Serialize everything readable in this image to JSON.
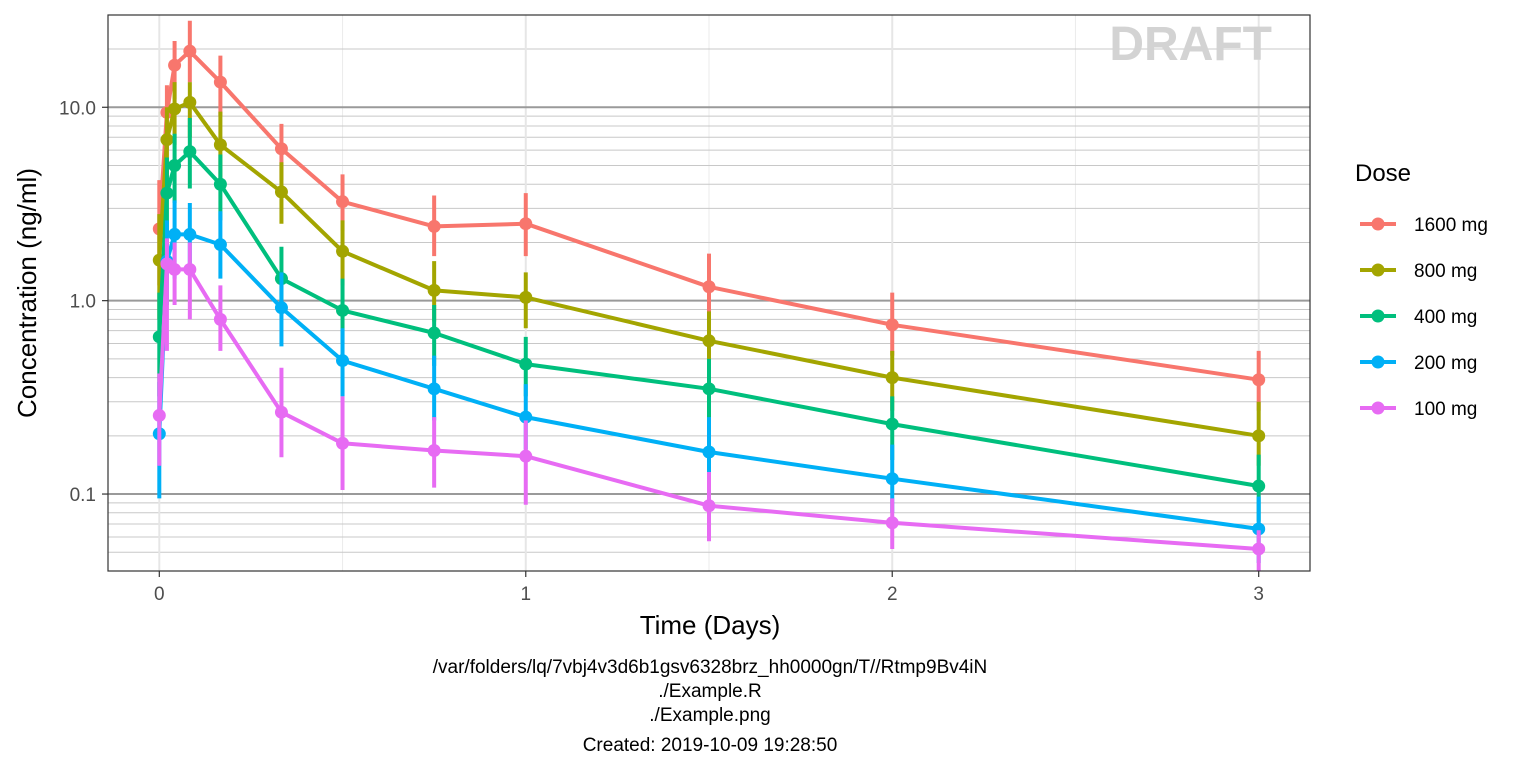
{
  "chart_data": {
    "type": "line",
    "watermark": "DRAFT",
    "xlabel": "Time (Days)",
    "ylabel": "Concentration (ng/ml)",
    "y_scale": "log10",
    "xlim": [
      -0.14,
      3.14
    ],
    "ylim": [
      0.04,
      30
    ],
    "x_ticks": [
      0,
      1,
      2,
      3
    ],
    "x_tick_labels": [
      "0",
      "1",
      "2",
      "3"
    ],
    "y_ticks": [
      0.1,
      1.0,
      10.0
    ],
    "y_tick_labels": [
      "0.1",
      "1.0",
      "10.0"
    ],
    "grid": true,
    "legend": {
      "title": "Dose",
      "position": "right"
    },
    "caption_lines": [
      "/var/folders/lq/7vbj4v3d6b1gsv6328brz_hh0000gn/T//Rtmp9Bv4iN",
      "./Example.R",
      "./Example.png",
      "Created: 2019-10-09 19:28:50"
    ],
    "x": [
      0,
      0.0208,
      0.0417,
      0.0833,
      0.1667,
      0.3333,
      0.5,
      0.75,
      1,
      1.5,
      2,
      3
    ],
    "series": [
      {
        "name": "1600 mg",
        "color": "#F8766D",
        "values": [
          2.35,
          9.4,
          16.5,
          19.5,
          13.5,
          6.1,
          3.25,
          2.42,
          2.5,
          1.18,
          0.75,
          0.39
        ],
        "err_low": [
          1.2,
          6.0,
          11.0,
          13.5,
          9.0,
          4.2,
          2.3,
          1.7,
          1.7,
          0.8,
          0.52,
          0.27
        ],
        "err_high": [
          4.2,
          13.0,
          22.0,
          28.0,
          18.5,
          8.2,
          4.5,
          3.5,
          3.6,
          1.75,
          1.1,
          0.55
        ]
      },
      {
        "name": "800 mg",
        "color": "#A3A500",
        "values": [
          1.62,
          6.8,
          9.8,
          10.6,
          6.4,
          3.65,
          1.8,
          1.13,
          1.04,
          0.62,
          0.4,
          0.2
        ],
        "err_low": [
          0.8,
          4.2,
          6.4,
          7.0,
          4.3,
          2.5,
          1.2,
          0.78,
          0.72,
          0.42,
          0.27,
          0.14
        ],
        "err_high": [
          2.8,
          10.0,
          13.5,
          13.5,
          9.5,
          5.2,
          2.6,
          1.6,
          1.4,
          0.88,
          0.55,
          0.3
        ]
      },
      {
        "name": "400 mg",
        "color": "#00BF7D",
        "values": [
          0.65,
          3.6,
          5.0,
          5.9,
          4.0,
          1.3,
          0.89,
          0.68,
          0.47,
          0.35,
          0.23,
          0.11
        ],
        "err_low": [
          0.32,
          2.2,
          3.2,
          3.8,
          2.6,
          0.85,
          0.6,
          0.46,
          0.32,
          0.24,
          0.15,
          0.072
        ],
        "err_high": [
          1.1,
          5.5,
          7.3,
          8.8,
          5.7,
          1.9,
          1.3,
          0.95,
          0.65,
          0.5,
          0.32,
          0.16
        ]
      },
      {
        "name": "200 mg",
        "color": "#00B0F6",
        "values": [
          0.205,
          1.6,
          2.2,
          2.2,
          1.95,
          0.92,
          0.49,
          0.35,
          0.25,
          0.165,
          0.12,
          0.066
        ],
        "err_low": [
          0.095,
          0.95,
          1.3,
          1.4,
          1.3,
          0.58,
          0.32,
          0.24,
          0.17,
          0.11,
          0.08,
          0.044
        ],
        "err_high": [
          0.38,
          2.6,
          3.3,
          3.2,
          2.9,
          1.4,
          0.72,
          0.52,
          0.37,
          0.25,
          0.18,
          0.097
        ]
      },
      {
        "name": "100 mg",
        "color": "#E76BF3",
        "values": [
          0.255,
          1.55,
          1.45,
          1.45,
          0.8,
          0.265,
          0.183,
          0.168,
          0.157,
          0.087,
          0.071,
          0.052
        ],
        "err_low": [
          0.14,
          0.55,
          0.95,
          0.8,
          0.55,
          0.155,
          0.105,
          0.108,
          0.088,
          0.057,
          0.052,
          0.04
        ],
        "err_high": [
          0.42,
          2.1,
          2.0,
          2.0,
          1.2,
          0.45,
          0.32,
          0.25,
          0.24,
          0.13,
          0.095,
          0.065
        ]
      }
    ]
  }
}
